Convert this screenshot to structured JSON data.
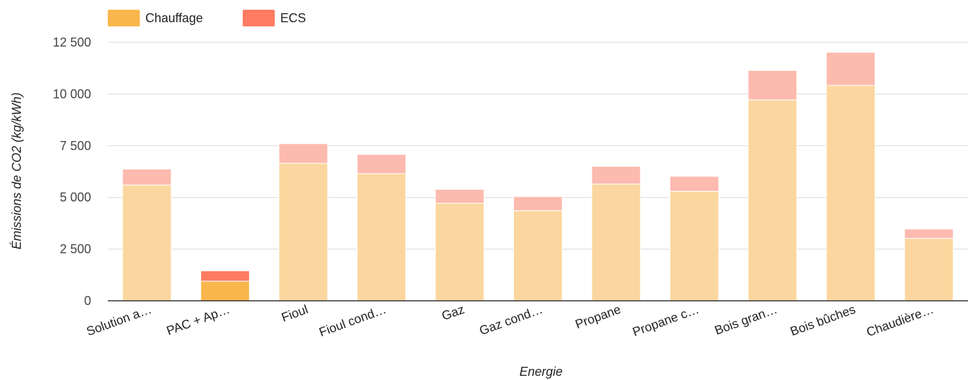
{
  "chart_data": {
    "type": "bar",
    "stacked": true,
    "categories": [
      "Solution a…",
      "PAC + Ap…",
      "Fioul",
      "Fioul cond…",
      "Gaz",
      "Gaz cond…",
      "Propane",
      "Propane c…",
      "Bois gran…",
      "Bois bûches",
      "Chaudière…"
    ],
    "series": [
      {
        "name": "Chauffage",
        "values": [
          5600,
          950,
          6650,
          6150,
          4720,
          4360,
          5650,
          5300,
          9720,
          10420,
          3020
        ],
        "color": "#f9b64c"
      },
      {
        "name": "ECS",
        "values": [
          770,
          500,
          950,
          930,
          670,
          680,
          850,
          720,
          1420,
          1600,
          450
        ],
        "color": "#ff7b61"
      }
    ],
    "highlight_index": 1,
    "dimmed_colors": {
      "Chauffage": "#fbd79f",
      "ECS": "#fdbaae"
    },
    "xlabel": "Energie",
    "ylabel": "Émissions de CO2 (kg/kWh)",
    "ylim": [
      0,
      12500
    ],
    "yticks": [
      0,
      2500,
      5000,
      7500,
      10000,
      12500
    ],
    "ytick_labels": [
      "0",
      "2 500",
      "5 000",
      "7 500",
      "10 000",
      "12 500"
    ],
    "grid": true,
    "legend_position": "top-left"
  }
}
